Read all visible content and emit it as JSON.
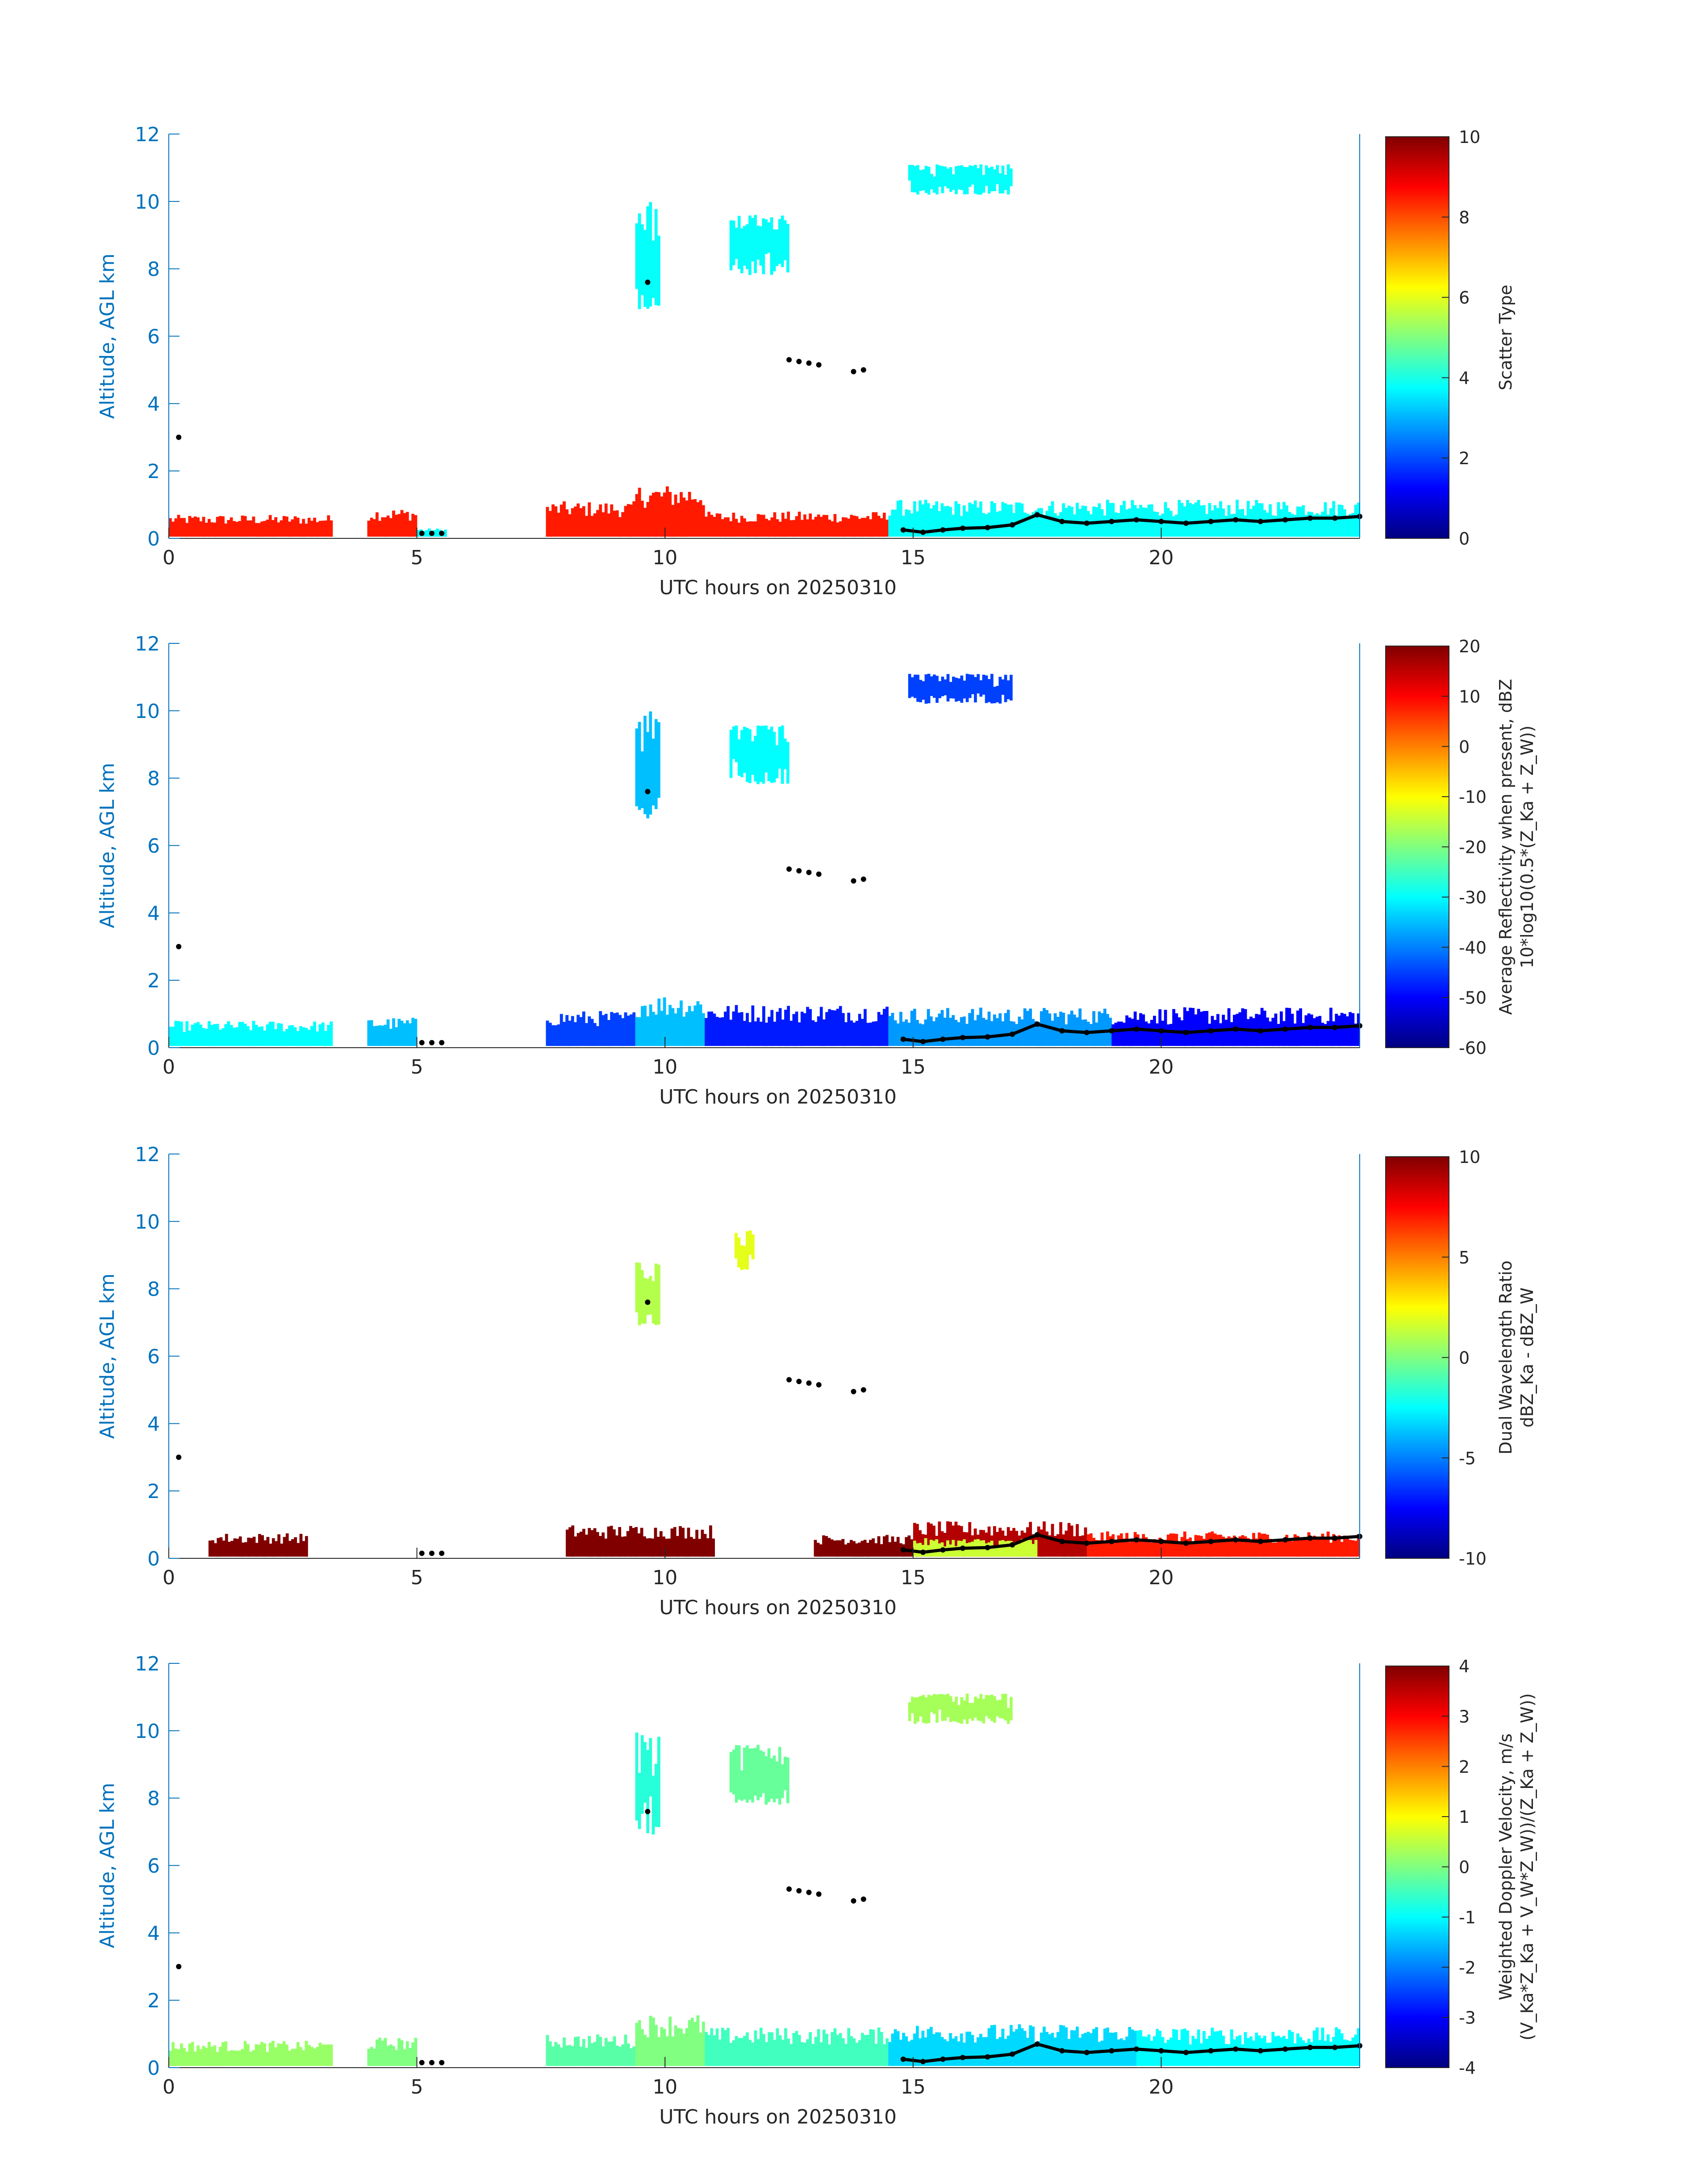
{
  "chart_data": [
    {
      "type": "heatmap",
      "panel": "scatter-type",
      "xlabel": "UTC hours on 20250310",
      "ylabel": "Altitude, AGL km",
      "xlim": [
        0,
        24
      ],
      "ylim": [
        0,
        12
      ],
      "xticks": [
        0,
        5,
        10,
        15,
        20
      ],
      "yticks": [
        0,
        2,
        4,
        6,
        8,
        10,
        12
      ],
      "colorbar": {
        "label_lines": [
          "Scatter Type"
        ],
        "min": 0,
        "max": 10,
        "ticks": [
          0,
          2,
          4,
          6,
          8,
          10
        ]
      },
      "regions": [
        {
          "x0": 0,
          "x1": 3.3,
          "ytop": 0.7,
          "value": 8.5
        },
        {
          "x0": 4.0,
          "x1": 5.0,
          "ytop": 0.9,
          "value": 8.5
        },
        {
          "x0": 5.0,
          "x1": 5.6,
          "ytop": 0.3,
          "value": 3.8
        },
        {
          "x0": 7.6,
          "x1": 9.4,
          "ytop": 1.1,
          "value": 8.5
        },
        {
          "x0": 9.4,
          "x1": 10.8,
          "ytop": 1.6,
          "value": 8.5
        },
        {
          "x0": 10.8,
          "x1": 14.5,
          "ytop": 0.8,
          "value": 8.5
        },
        {
          "x0": 14.5,
          "x1": 24,
          "ytop": 1.15,
          "value": 3.8
        },
        {
          "x0": 9.4,
          "x1": 9.9,
          "ybot": 6.8,
          "ytop": 10.0,
          "value": 3.8
        },
        {
          "x0": 11.3,
          "x1": 12.5,
          "ybot": 7.8,
          "ytop": 9.6,
          "value": 3.8
        },
        {
          "x0": 14.9,
          "x1": 17.0,
          "ybot": 10.2,
          "ytop": 11.1,
          "value": 3.8
        }
      ]
    },
    {
      "type": "heatmap",
      "panel": "average-reflectivity",
      "xlabel": "UTC hours on 20250310",
      "ylabel": "Altitude, AGL km",
      "xlim": [
        0,
        24
      ],
      "ylim": [
        0,
        12
      ],
      "xticks": [
        0,
        5,
        10,
        15,
        20
      ],
      "yticks": [
        0,
        2,
        4,
        6,
        8,
        10,
        12
      ],
      "colorbar": {
        "label_lines": [
          "Average Reflectivity when present, dBZ",
          "10*log10(0.5*(Z_Ka + Z_W))"
        ],
        "min": -60,
        "max": 20,
        "ticks": [
          -60,
          -50,
          -40,
          -30,
          -20,
          -10,
          0,
          10,
          20
        ]
      },
      "regions": [
        {
          "x0": 0,
          "x1": 3.3,
          "ytop": 0.8,
          "value": -30
        },
        {
          "x0": 4.0,
          "x1": 5.0,
          "ytop": 0.9,
          "value": -35
        },
        {
          "x0": 7.6,
          "x1": 9.4,
          "ytop": 1.1,
          "value": -45
        },
        {
          "x0": 9.4,
          "x1": 10.8,
          "ytop": 1.6,
          "value": -35
        },
        {
          "x0": 10.8,
          "x1": 14.5,
          "ytop": 1.3,
          "value": -48
        },
        {
          "x0": 14.5,
          "x1": 19.0,
          "ytop": 1.2,
          "value": -38
        },
        {
          "x0": 19.0,
          "x1": 24,
          "ytop": 1.2,
          "value": -50
        },
        {
          "x0": 9.4,
          "x1": 9.9,
          "ybot": 6.8,
          "ytop": 10.0,
          "value": -35
        },
        {
          "x0": 11.3,
          "x1": 12.5,
          "ybot": 7.8,
          "ytop": 9.6,
          "value": -30
        },
        {
          "x0": 14.9,
          "x1": 17.0,
          "ybot": 10.2,
          "ytop": 11.1,
          "value": -45
        }
      ]
    },
    {
      "type": "heatmap",
      "panel": "dual-wavelength-ratio",
      "xlabel": "UTC hours on 20250310",
      "ylabel": "Altitude, AGL km",
      "xlim": [
        0,
        24
      ],
      "ylim": [
        0,
        12
      ],
      "xticks": [
        0,
        5,
        10,
        15,
        20
      ],
      "yticks": [
        0,
        2,
        4,
        6,
        8,
        10,
        12
      ],
      "colorbar": {
        "label_lines": [
          "Dual Wavelength Ratio",
          "dBZ_Ka - dBZ_W"
        ],
        "min": -10,
        "max": 10,
        "ticks": [
          -10,
          -5,
          0,
          5,
          10
        ]
      },
      "regions": [
        {
          "x0": 0.8,
          "x1": 2.8,
          "ytop": 0.75,
          "value": 10
        },
        {
          "x0": 8.0,
          "x1": 11.0,
          "ytop": 1.0,
          "value": 10
        },
        {
          "x0": 13.0,
          "x1": 15.0,
          "ytop": 0.7,
          "value": 10
        },
        {
          "x0": 15.0,
          "x1": 18.5,
          "ytop": 1.1,
          "value": 9
        },
        {
          "x0": 15.0,
          "x1": 17.5,
          "ytop": 0.6,
          "value": 1.5
        },
        {
          "x0": 18.5,
          "x1": 24,
          "ytop": 0.8,
          "value": 7
        },
        {
          "x0": 9.4,
          "x1": 9.9,
          "ybot": 6.9,
          "ytop": 8.8,
          "value": 1
        },
        {
          "x0": 11.4,
          "x1": 11.8,
          "ybot": 8.5,
          "ytop": 9.8,
          "value": 2
        }
      ]
    },
    {
      "type": "heatmap",
      "panel": "weighted-doppler-velocity",
      "xlabel": "UTC hours on 20250310",
      "ylabel": "Altitude, AGL km",
      "xlim": [
        0,
        24
      ],
      "ylim": [
        0,
        12
      ],
      "xticks": [
        0,
        5,
        10,
        15,
        20
      ],
      "yticks": [
        0,
        2,
        4,
        6,
        8,
        10,
        12
      ],
      "colorbar": {
        "label_lines": [
          "Weighted Doppler Velocity, m/s",
          "(V_Ka*Z_Ka + V_W*Z_W))/(Z_Ka + Z_W))"
        ],
        "min": -4,
        "max": 4,
        "ticks": [
          -4,
          -3,
          -2,
          -1,
          0,
          1,
          2,
          3,
          4
        ]
      },
      "regions": [
        {
          "x0": 0,
          "x1": 3.3,
          "ytop": 0.8,
          "value": 0.2
        },
        {
          "x0": 4.0,
          "x1": 5.0,
          "ytop": 0.9,
          "value": 0
        },
        {
          "x0": 7.6,
          "x1": 9.4,
          "ytop": 1.0,
          "value": -0.3
        },
        {
          "x0": 9.4,
          "x1": 10.8,
          "ytop": 1.6,
          "value": 0
        },
        {
          "x0": 10.8,
          "x1": 14.5,
          "ytop": 1.2,
          "value": -0.5
        },
        {
          "x0": 14.5,
          "x1": 19.5,
          "ytop": 1.3,
          "value": -1.3
        },
        {
          "x0": 19.5,
          "x1": 24,
          "ytop": 1.2,
          "value": -1.0
        },
        {
          "x0": 9.4,
          "x1": 9.9,
          "ybot": 6.8,
          "ytop": 10.0,
          "value": -0.7
        },
        {
          "x0": 11.3,
          "x1": 12.5,
          "ybot": 7.8,
          "ytop": 9.6,
          "value": -0.2
        },
        {
          "x0": 14.9,
          "x1": 17.0,
          "ybot": 10.2,
          "ytop": 11.1,
          "value": 0.3
        }
      ]
    }
  ],
  "cloud_base_markers": [
    {
      "x": 0.2,
      "y": 3.0
    },
    {
      "x": 5.1,
      "y": 0.15
    },
    {
      "x": 5.3,
      "y": 0.15
    },
    {
      "x": 5.5,
      "y": 0.15
    },
    {
      "x": 9.65,
      "y": 7.6
    },
    {
      "x": 12.5,
      "y": 5.3
    },
    {
      "x": 12.7,
      "y": 5.25
    },
    {
      "x": 12.9,
      "y": 5.2
    },
    {
      "x": 13.1,
      "y": 5.15
    },
    {
      "x": 13.8,
      "y": 4.95
    },
    {
      "x": 14.0,
      "y": 5.0
    },
    {
      "x": 14.8,
      "y": 0.25
    },
    {
      "x": 15.2,
      "y": 0.18
    },
    {
      "x": 15.6,
      "y": 0.25
    },
    {
      "x": 16.0,
      "y": 0.3
    },
    {
      "x": 16.5,
      "y": 0.32
    },
    {
      "x": 17.0,
      "y": 0.4
    },
    {
      "x": 17.5,
      "y": 0.7
    },
    {
      "x": 18.0,
      "y": 0.5
    },
    {
      "x": 18.5,
      "y": 0.45
    },
    {
      "x": 19.0,
      "y": 0.5
    },
    {
      "x": 19.5,
      "y": 0.55
    },
    {
      "x": 20.0,
      "y": 0.5
    },
    {
      "x": 20.5,
      "y": 0.45
    },
    {
      "x": 21.0,
      "y": 0.5
    },
    {
      "x": 21.5,
      "y": 0.55
    },
    {
      "x": 22.0,
      "y": 0.5
    },
    {
      "x": 22.5,
      "y": 0.55
    },
    {
      "x": 23.0,
      "y": 0.6
    },
    {
      "x": 23.5,
      "y": 0.6
    },
    {
      "x": 24.0,
      "y": 0.65
    }
  ],
  "colors": {
    "axis_blue": "#0072BD",
    "text": "#262626",
    "marker": "#000000"
  },
  "colormap": "jet"
}
